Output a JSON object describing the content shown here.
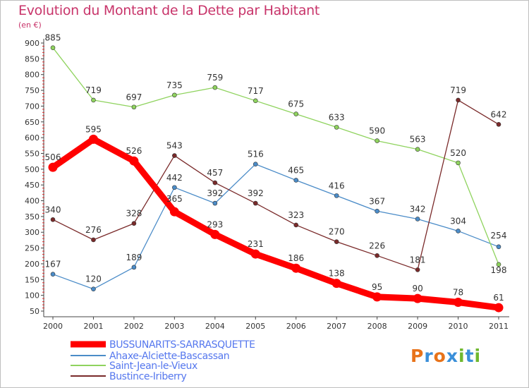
{
  "header": {
    "title": "Evolution du Montant de la Dette par Habitant",
    "unit": "(en €)"
  },
  "logo": {
    "letters": [
      "P",
      "r",
      "o",
      "x",
      "i",
      "t",
      "i"
    ],
    "colors": [
      "#e8731a",
      "#3a8fd9",
      "#e8731a",
      "#3a8fd9",
      "#6fb82e",
      "#3a8fd9",
      "#6fb82e"
    ]
  },
  "chart_data": {
    "type": "line",
    "x": [
      "2000",
      "2001",
      "2002",
      "2003",
      "2004",
      "2005",
      "2006",
      "2007",
      "2008",
      "2009",
      "2010",
      "2011"
    ],
    "ylim": [
      50,
      900
    ],
    "yticks": [
      50,
      100,
      150,
      200,
      250,
      300,
      350,
      400,
      450,
      500,
      550,
      600,
      650,
      700,
      750,
      800,
      850,
      900
    ],
    "grid": false,
    "legend": "bottom-left",
    "series": [
      {
        "name": "BUSSUNARITS-SARRASQUETTE",
        "color": "#ff0000",
        "values": [
          506,
          595,
          526,
          365,
          293,
          231,
          186,
          138,
          95,
          90,
          78,
          61
        ]
      },
      {
        "name": "Ahaxe-Alciette-Bascassan",
        "color": "#4b8cc8",
        "values": [
          167,
          120,
          189,
          442,
          392,
          516,
          465,
          416,
          367,
          342,
          304,
          254
        ]
      },
      {
        "name": "Saint-Jean-le-Vieux",
        "color": "#8fd35e",
        "values": [
          885,
          719,
          697,
          735,
          759,
          717,
          675,
          633,
          590,
          563,
          520,
          198
        ]
      },
      {
        "name": "Bustince-Iriberry",
        "color": "#7a2a2a",
        "values": [
          340,
          276,
          328,
          543,
          457,
          392,
          323,
          270,
          226,
          181,
          719,
          642
        ]
      }
    ]
  }
}
